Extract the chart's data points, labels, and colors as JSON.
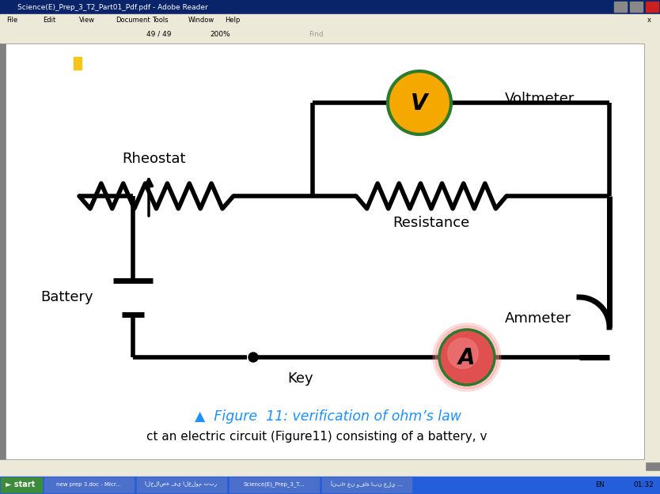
{
  "bg_color": "#ffffff",
  "page_bg": "#ffffff",
  "content_bg": "#c0c0c0",
  "title_bar_color": "#0a246a",
  "title_bar_text": "Science(E)_Prep_3_T2_Part01_Pdf.pdf - Adobe Reader",
  "menu_bg": "#ece9d8",
  "toolbar_bg": "#ece9d8",
  "figure_caption": "▲  Figure  11: verification of ohm’s law",
  "caption_color": "#1e90ff",
  "caption_triangle_color": "#1e90ff",
  "bottom_text": "ct an electric circuit (Figure11) consisting of a battery, v",
  "voltmeter_color": "#f5a800",
  "voltmeter_border": "#2d7a2d",
  "voltmeter_label": "V",
  "ammeter_fill_outer": "#e05050",
  "ammeter_fill_inner": "#ff7070",
  "ammeter_border": "#2d7a2d",
  "ammeter_label": "A",
  "label_rheostat": "Rheostat",
  "label_resistance": "Resistance",
  "label_battery": "Battery",
  "label_key": "Key",
  "label_voltmeter": "Voltmeter",
  "label_ammeter": "Ammeter",
  "wire_color": "#000000",
  "wire_lw": 3.0,
  "taskbar_bg": "#245edb",
  "start_bg": "#3a8a3a",
  "status_bg": "#ece9d8"
}
